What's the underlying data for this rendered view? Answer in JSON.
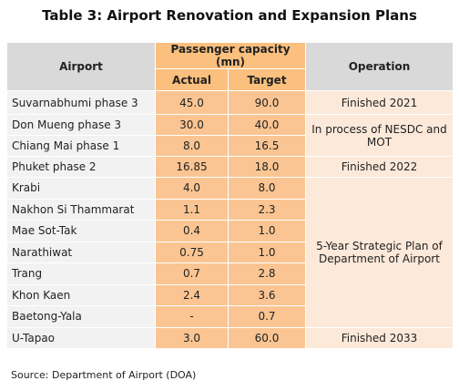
{
  "title": "Table 3: Airport Renovation and Expansion Plans",
  "table": {
    "header": {
      "airport": "Airport",
      "capacity": "Passenger capacity (mn)",
      "actual": "Actual",
      "target": "Target",
      "operation": "Operation"
    },
    "rows": [
      [
        "Suvarnabhumi phase 3",
        "45.0",
        "90.0"
      ],
      [
        "Don Mueng phase 3",
        "30.0",
        "40.0"
      ],
      [
        "Chiang Mai phase 1",
        "8.0",
        "16.5"
      ],
      [
        "Phuket phase 2",
        "16.85",
        "18.0"
      ],
      [
        "Krabi",
        "4.0",
        "8.0"
      ],
      [
        "Nakhon Si Thammarat",
        "1.1",
        "2.3"
      ],
      [
        "Mae Sot-Tak",
        "0.4",
        "1.0"
      ],
      [
        "Narathiwat",
        "0.75",
        "1.0"
      ],
      [
        "Trang",
        "0.7",
        "2.8"
      ],
      [
        "Khon Kaen",
        "2.4",
        "3.6"
      ],
      [
        "Baetong-Yala",
        "-",
        "0.7"
      ],
      [
        "U-Tapao",
        "3.0",
        "60.0"
      ]
    ],
    "operations": [
      "Finished 2021",
      "In process of NESDC and MOT",
      "Finished 2022",
      "5-Year Strategic Plan of Department of Airport",
      "Finished 2033"
    ]
  },
  "source": "Source: Department of Airport (DOA)"
}
